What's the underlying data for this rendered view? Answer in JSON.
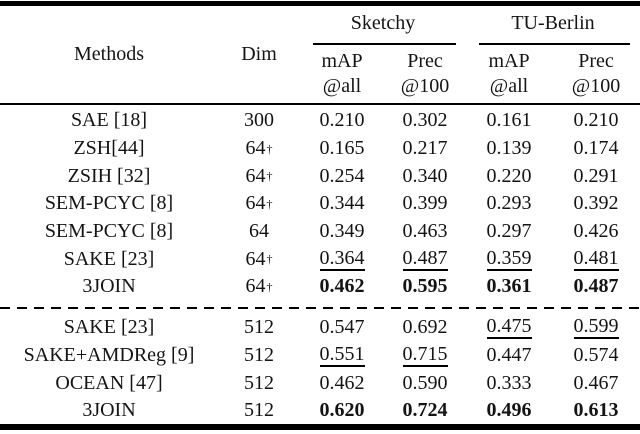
{
  "header": {
    "methods_label": "Methods",
    "dim_label": "Dim",
    "groups": [
      {
        "name": "Sketchy",
        "cols": [
          {
            "top": "mAP",
            "bottom": "@all"
          },
          {
            "top": "Prec",
            "bottom": "@100"
          }
        ]
      },
      {
        "name": "TU-Berlin",
        "cols": [
          {
            "top": "mAP",
            "bottom": "@all"
          },
          {
            "top": "Prec",
            "bottom": "@100"
          }
        ]
      }
    ]
  },
  "dagger_symbol": "†",
  "style_legend": {
    "b": "bold (best)",
    "u": "underlined (second best)",
    "p": "plain"
  },
  "colors": {
    "text": "#141414",
    "rule": "#000000",
    "background": "#ffffff"
  },
  "rows": [
    {
      "group": 1,
      "method": "SAE [18]",
      "dim": "300",
      "dagger": false,
      "values": [
        {
          "v": "0.210",
          "s": "p"
        },
        {
          "v": "0.302",
          "s": "p"
        },
        {
          "v": "0.161",
          "s": "p"
        },
        {
          "v": "0.210",
          "s": "p"
        }
      ]
    },
    {
      "group": 1,
      "method": "ZSH[44]",
      "dim": "64",
      "dagger": true,
      "values": [
        {
          "v": "0.165",
          "s": "p"
        },
        {
          "v": "0.217",
          "s": "p"
        },
        {
          "v": "0.139",
          "s": "p"
        },
        {
          "v": "0.174",
          "s": "p"
        }
      ]
    },
    {
      "group": 1,
      "method": "ZSIH [32]",
      "dim": "64",
      "dagger": true,
      "values": [
        {
          "v": "0.254",
          "s": "p"
        },
        {
          "v": "0.340",
          "s": "p"
        },
        {
          "v": "0.220",
          "s": "p"
        },
        {
          "v": "0.291",
          "s": "p"
        }
      ]
    },
    {
      "group": 1,
      "method": "SEM-PCYC [8]",
      "dim": "64",
      "dagger": true,
      "values": [
        {
          "v": "0.344",
          "s": "p"
        },
        {
          "v": "0.399",
          "s": "p"
        },
        {
          "v": "0.293",
          "s": "p"
        },
        {
          "v": "0.392",
          "s": "p"
        }
      ]
    },
    {
      "group": 1,
      "method": "SEM-PCYC [8]",
      "dim": "64",
      "dagger": false,
      "values": [
        {
          "v": "0.349",
          "s": "p"
        },
        {
          "v": "0.463",
          "s": "p"
        },
        {
          "v": "0.297",
          "s": "p"
        },
        {
          "v": "0.426",
          "s": "p"
        }
      ]
    },
    {
      "group": 1,
      "method": "SAKE [23]",
      "dim": "64",
      "dagger": true,
      "values": [
        {
          "v": "0.364",
          "s": "u"
        },
        {
          "v": "0.487",
          "s": "u"
        },
        {
          "v": "0.359",
          "s": "u"
        },
        {
          "v": "0.481",
          "s": "u"
        }
      ]
    },
    {
      "group": 1,
      "method": "3JOIN",
      "dim": "64",
      "dagger": true,
      "values": [
        {
          "v": "0.462",
          "s": "b"
        },
        {
          "v": "0.595",
          "s": "b"
        },
        {
          "v": "0.361",
          "s": "b"
        },
        {
          "v": "0.487",
          "s": "b"
        }
      ]
    },
    {
      "group": 2,
      "method": "SAKE [23]",
      "dim": "512",
      "dagger": false,
      "values": [
        {
          "v": "0.547",
          "s": "p"
        },
        {
          "v": "0.692",
          "s": "p"
        },
        {
          "v": "0.475",
          "s": "u"
        },
        {
          "v": "0.599",
          "s": "u"
        }
      ]
    },
    {
      "group": 2,
      "method": "SAKE+AMDReg [9]",
      "dim": "512",
      "dagger": false,
      "values": [
        {
          "v": "0.551",
          "s": "u"
        },
        {
          "v": "0.715",
          "s": "u"
        },
        {
          "v": "0.447",
          "s": "p"
        },
        {
          "v": "0.574",
          "s": "p"
        }
      ]
    },
    {
      "group": 2,
      "method": "OCEAN [47]",
      "dim": "512",
      "dagger": false,
      "values": [
        {
          "v": "0.462",
          "s": "p"
        },
        {
          "v": "0.590",
          "s": "p"
        },
        {
          "v": "0.333",
          "s": "p"
        },
        {
          "v": "0.467",
          "s": "p"
        }
      ]
    },
    {
      "group": 2,
      "method": "3JOIN",
      "dim": "512",
      "dagger": false,
      "values": [
        {
          "v": "0.620",
          "s": "b"
        },
        {
          "v": "0.724",
          "s": "b"
        },
        {
          "v": "0.496",
          "s": "b"
        },
        {
          "v": "0.613",
          "s": "b"
        }
      ]
    }
  ]
}
